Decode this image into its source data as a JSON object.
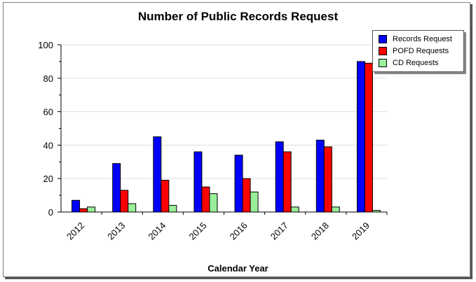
{
  "chart_data": {
    "type": "bar",
    "title": "Number of Public Records Request",
    "xlabel": "Calendar Year",
    "ylabel": "",
    "ylim": [
      0,
      100
    ],
    "yticks": [
      0,
      20,
      40,
      60,
      80,
      100
    ],
    "grid": true,
    "legend_position": "top-right",
    "categories": [
      "2012",
      "2013",
      "2014",
      "2015",
      "2016",
      "2017",
      "2018",
      "2019"
    ],
    "series": [
      {
        "name": "Records Request",
        "color": "#0000ff",
        "values": [
          7,
          29,
          45,
          36,
          34,
          42,
          43,
          90
        ]
      },
      {
        "name": "POFD Requests",
        "color": "#ff0000",
        "values": [
          2,
          13,
          19,
          15,
          20,
          36,
          39,
          89
        ]
      },
      {
        "name": "CD Requests",
        "color": "#99ee99",
        "values": [
          3,
          5,
          4,
          11,
          12,
          3,
          3,
          1
        ]
      }
    ]
  }
}
